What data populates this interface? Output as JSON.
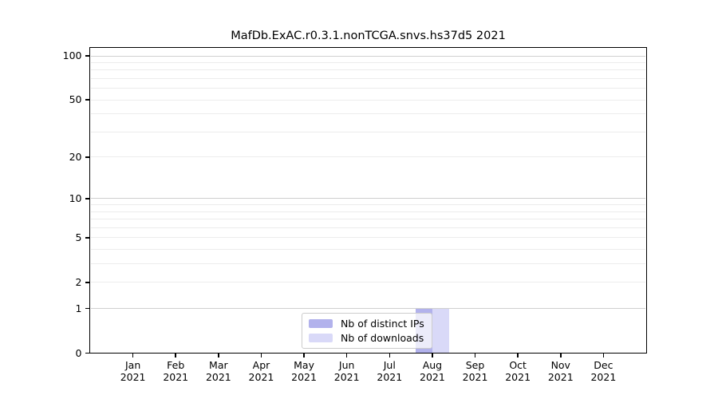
{
  "chart_data": {
    "type": "bar",
    "title": "MafDb.ExAC.r0.3.1.nonTCGA.snvs.hs37d5 2021",
    "categories": [
      "Jan 2021",
      "Feb 2021",
      "Mar 2021",
      "Apr 2021",
      "May 2021",
      "Jun 2021",
      "Jul 2021",
      "Aug 2021",
      "Sep 2021",
      "Oct 2021",
      "Nov 2021",
      "Dec 2021"
    ],
    "series": [
      {
        "name": "Nb of distinct IPs",
        "color": "#b2b2ec",
        "values": [
          0,
          0,
          0,
          0,
          0,
          0,
          0,
          1,
          0,
          0,
          0,
          0
        ]
      },
      {
        "name": "Nb of downloads",
        "color": "#d9d9f8",
        "values": [
          0,
          0,
          0,
          0,
          0,
          0,
          0,
          1,
          0,
          0,
          0,
          0
        ]
      }
    ],
    "xlabel": "",
    "ylabel": "",
    "yscale": "log1p",
    "ylim": [
      0,
      100
    ],
    "yticks": [
      0,
      1,
      2,
      5,
      10,
      20,
      50,
      100
    ],
    "y_major_gridlines": [
      1,
      10,
      100
    ],
    "y_minor_gridlines": [
      2,
      3,
      4,
      5,
      6,
      7,
      8,
      9,
      20,
      30,
      40,
      50,
      60,
      70,
      80,
      90
    ],
    "grid": true,
    "legend_position": "lower-center-inside",
    "colors": {
      "grid_major": "#cfcfcf",
      "grid_minor": "#ececec",
      "spine": "#000000",
      "text": "#000000",
      "legend_border": "#cccccc"
    }
  }
}
